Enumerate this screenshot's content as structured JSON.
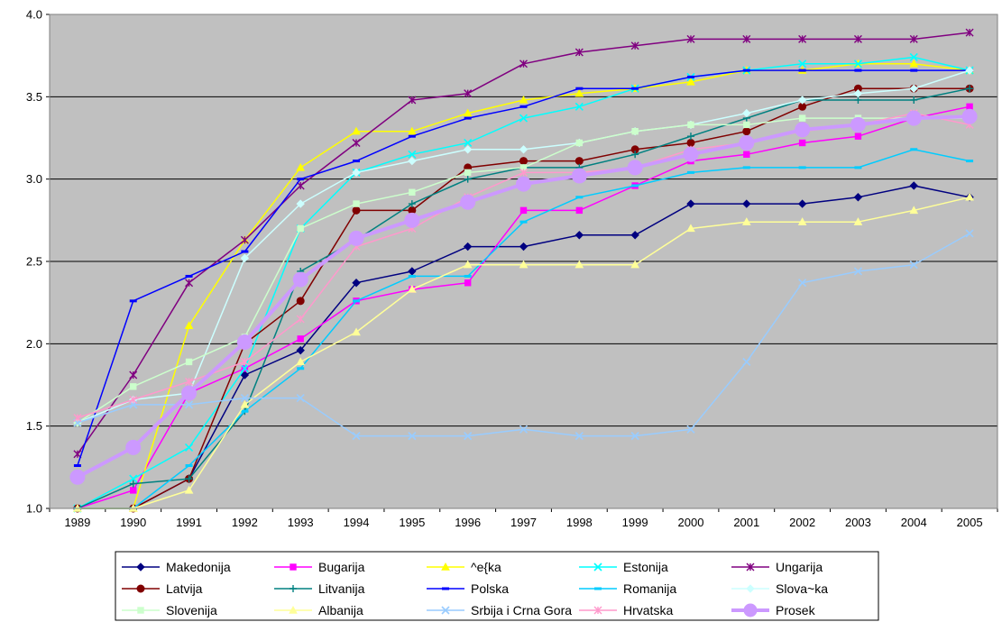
{
  "chart_data": {
    "type": "line",
    "title": "",
    "xlabel": "",
    "ylabel": "",
    "ylim": [
      1.0,
      4.0
    ],
    "y_ticks": [
      "1.0",
      "1.5",
      "2.0",
      "2.5",
      "3.0",
      "3.5",
      "4.0"
    ],
    "grid": "horizontal",
    "legend_placement": "bottom",
    "categories": [
      "1989",
      "1990",
      "1991",
      "1992",
      "1993",
      "1994",
      "1995",
      "1996",
      "1997",
      "1998",
      "1999",
      "2000",
      "2001",
      "2002",
      "2003",
      "2004",
      "2005"
    ],
    "series": [
      {
        "name": "Makedonija",
        "color": "#000080",
        "marker": "diamond",
        "values": [
          1.0,
          1.0,
          1.18,
          1.81,
          1.96,
          2.37,
          2.44,
          2.59,
          2.59,
          2.66,
          2.66,
          2.85,
          2.85,
          2.85,
          2.89,
          2.96,
          2.89
        ]
      },
      {
        "name": "Bugarija",
        "color": "#ff00ff",
        "marker": "square",
        "values": [
          1.0,
          1.11,
          1.7,
          1.85,
          2.03,
          2.26,
          2.33,
          2.37,
          2.81,
          2.81,
          2.96,
          3.11,
          3.15,
          3.22,
          3.26,
          3.37,
          3.44
        ]
      },
      {
        "name": "^e{ka",
        "color": "#ffff00",
        "marker": "triangle",
        "values": [
          1.0,
          1.0,
          2.11,
          2.63,
          3.07,
          3.29,
          3.29,
          3.4,
          3.48,
          3.52,
          3.55,
          3.59,
          3.66,
          3.66,
          3.7,
          3.7,
          3.66
        ]
      },
      {
        "name": "Estonija",
        "color": "#00ffff",
        "marker": "x",
        "values": [
          1.0,
          1.18,
          1.37,
          1.85,
          2.7,
          3.04,
          3.15,
          3.22,
          3.37,
          3.44,
          3.55,
          3.62,
          3.66,
          3.7,
          3.7,
          3.74,
          3.66
        ]
      },
      {
        "name": "Ungarija",
        "color": "#800080",
        "marker": "star",
        "values": [
          1.33,
          1.81,
          2.37,
          2.63,
          2.96,
          3.22,
          3.48,
          3.52,
          3.7,
          3.77,
          3.81,
          3.85,
          3.85,
          3.85,
          3.85,
          3.85,
          3.89
        ]
      },
      {
        "name": "Latvija",
        "color": "#800000",
        "marker": "circle",
        "values": [
          1.0,
          1.0,
          1.18,
          2.0,
          2.26,
          2.81,
          2.81,
          3.07,
          3.11,
          3.11,
          3.18,
          3.22,
          3.29,
          3.44,
          3.55,
          3.55,
          3.55
        ]
      },
      {
        "name": "Litvanija",
        "color": "#008080",
        "marker": "plus",
        "values": [
          1.0,
          1.15,
          1.18,
          1.59,
          2.44,
          2.63,
          2.85,
          3.0,
          3.07,
          3.07,
          3.15,
          3.26,
          3.37,
          3.48,
          3.48,
          3.48,
          3.55
        ]
      },
      {
        "name": "Polska",
        "color": "#0000ff",
        "marker": "dash",
        "values": [
          1.26,
          2.26,
          2.41,
          2.56,
          3.0,
          3.11,
          3.26,
          3.37,
          3.44,
          3.55,
          3.55,
          3.62,
          3.66,
          3.66,
          3.66,
          3.66,
          3.66
        ]
      },
      {
        "name": "Romanija",
        "color": "#00ccff",
        "marker": "dash",
        "values": [
          1.0,
          1.0,
          1.26,
          1.59,
          1.85,
          2.26,
          2.41,
          2.41,
          2.74,
          2.89,
          2.96,
          3.04,
          3.07,
          3.07,
          3.07,
          3.18,
          3.11
        ]
      },
      {
        "name": "Slova~ka",
        "color": "#ccffff",
        "marker": "diamond",
        "values": [
          1.52,
          1.66,
          1.7,
          2.52,
          2.85,
          3.04,
          3.11,
          3.18,
          3.18,
          3.22,
          3.29,
          3.33,
          3.4,
          3.48,
          3.52,
          3.55,
          3.66
        ]
      },
      {
        "name": "Slovenija",
        "color": "#ccffcc",
        "marker": "square",
        "values": [
          1.52,
          1.74,
          1.89,
          2.04,
          2.7,
          2.85,
          2.92,
          3.04,
          3.07,
          3.22,
          3.29,
          3.33,
          3.33,
          3.37,
          3.37,
          3.37,
          3.37
        ]
      },
      {
        "name": "Albanija",
        "color": "#ffff99",
        "marker": "triangle",
        "values": [
          1.0,
          1.0,
          1.11,
          1.63,
          1.89,
          2.07,
          2.33,
          2.48,
          2.48,
          2.48,
          2.48,
          2.7,
          2.74,
          2.74,
          2.74,
          2.81,
          2.89
        ]
      },
      {
        "name": "Srbija i Crna Gora",
        "color": "#99ccff",
        "marker": "x",
        "values": [
          1.52,
          1.63,
          1.63,
          1.67,
          1.67,
          1.44,
          1.44,
          1.44,
          1.48,
          1.44,
          1.44,
          1.48,
          1.89,
          2.37,
          2.44,
          2.48,
          2.67
        ]
      },
      {
        "name": "Hrvatska",
        "color": "#ff99cc",
        "marker": "star",
        "values": [
          1.55,
          1.66,
          1.77,
          1.89,
          2.15,
          2.59,
          2.7,
          2.89,
          3.04,
          3.04,
          3.07,
          3.18,
          3.22,
          3.29,
          3.33,
          3.4,
          3.33
        ]
      },
      {
        "name": "Prosek",
        "color": "#cc99ff",
        "marker": "circle",
        "thick": true,
        "values": [
          1.19,
          1.37,
          1.7,
          2.01,
          2.39,
          2.64,
          2.75,
          2.86,
          2.97,
          3.02,
          3.07,
          3.15,
          3.22,
          3.3,
          3.33,
          3.37,
          3.38
        ]
      }
    ]
  }
}
